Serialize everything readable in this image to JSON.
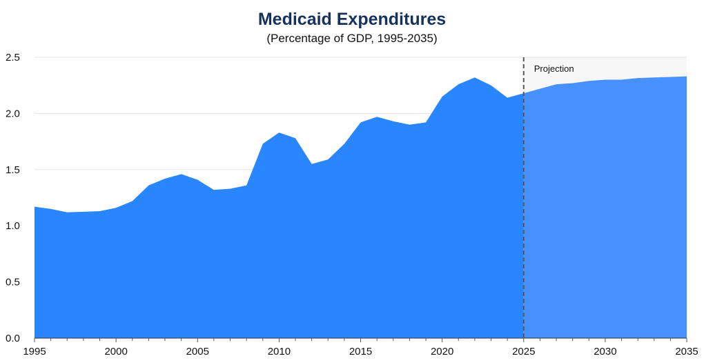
{
  "chart_data": {
    "type": "area",
    "title": "Medicaid Expenditures",
    "subtitle": "(Percentage of GDP, 1995-2035)",
    "xlabel": "",
    "ylabel": "",
    "xlim": [
      1995,
      2035
    ],
    "ylim": [
      0,
      2.5
    ],
    "x_ticks": [
      "1995",
      "2000",
      "2005",
      "2010",
      "2015",
      "2020",
      "2025",
      "2030",
      "2035"
    ],
    "y_ticks": [
      "0.0",
      "0.5",
      "1.0",
      "1.5",
      "2.0",
      "2.5"
    ],
    "grid": "horizontal",
    "annotations": [
      {
        "label": "Projection",
        "x": 2025,
        "style": "dashed-vertical-line"
      }
    ],
    "series": [
      {
        "segment": "historical",
        "color": "#2a86ff",
        "x": [
          1995,
          1996,
          1997,
          1998,
          1999,
          2000,
          2001,
          2002,
          2003,
          2004,
          2005,
          2006,
          2007,
          2008,
          2009,
          2010,
          2011,
          2012,
          2013,
          2014,
          2015,
          2016,
          2017,
          2018,
          2019,
          2020,
          2021,
          2022,
          2023,
          2024,
          2025
        ],
        "values": [
          1.17,
          1.15,
          1.12,
          1.125,
          1.13,
          1.16,
          1.22,
          1.36,
          1.42,
          1.46,
          1.41,
          1.32,
          1.33,
          1.36,
          1.73,
          1.83,
          1.78,
          1.55,
          1.59,
          1.73,
          1.92,
          1.97,
          1.93,
          1.9,
          1.92,
          2.15,
          2.26,
          2.32,
          2.25,
          2.14,
          2.18
        ]
      },
      {
        "segment": "projection",
        "color": "#4791ff",
        "x": [
          2025,
          2026,
          2027,
          2028,
          2029,
          2030,
          2031,
          2032,
          2033,
          2034,
          2035
        ],
        "values": [
          2.18,
          2.22,
          2.26,
          2.27,
          2.29,
          2.3,
          2.3,
          2.315,
          2.32,
          2.325,
          2.33
        ]
      }
    ]
  }
}
